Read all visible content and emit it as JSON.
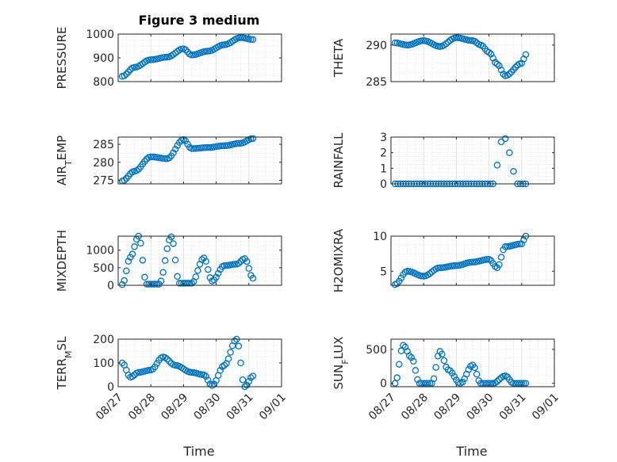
{
  "chart_data": [
    {
      "type": "scatter",
      "title": "Figure 3 medium",
      "ylabel": "PRESSURE",
      "ylim": [
        800,
        1000
      ],
      "yticks": [
        "800",
        "900",
        "1000"
      ],
      "grid": true,
      "x": [
        "08/27 03:00",
        "08/27 12:00",
        "08/28 00:00",
        "08/28 12:00",
        "08/29 00:00",
        "08/29 06:00",
        "08/29 18:00",
        "08/30 06:00",
        "08/30 18:00",
        "08/31 03:00"
      ],
      "values": [
        822,
        860,
        892,
        903,
        938,
        912,
        928,
        955,
        985,
        977
      ]
    },
    {
      "type": "scatter",
      "ylabel": "THETA",
      "ylim": [
        285,
        291.5
      ],
      "yticks": [
        "285",
        "290"
      ],
      "grid": true,
      "x": [
        "08/27 03:00",
        "08/27 12:00",
        "08/28 00:00",
        "08/28 12:00",
        "08/29 00:00",
        "08/29 12:00",
        "08/29 18:00",
        "08/30 00:00",
        "08/30 06:00",
        "08/30 12:00",
        "08/31 00:00",
        "08/31 03:00"
      ],
      "values": [
        290.3,
        290.0,
        290.6,
        289.8,
        291.0,
        290.6,
        290.0,
        289.0,
        287.4,
        285.8,
        287.5,
        288.7
      ]
    },
    {
      "type": "scatter",
      "ylabel": "AIR_TEMP",
      "ylim": [
        274,
        287
      ],
      "yticks": [
        "275",
        "280",
        "285"
      ],
      "grid": true,
      "x": [
        "08/27 03:00",
        "08/27 12:00",
        "08/28 00:00",
        "08/28 12:00",
        "08/29 00:00",
        "08/29 06:00",
        "08/29 18:00",
        "08/30 06:00",
        "08/30 18:00",
        "08/31 03:00"
      ],
      "values": [
        274.8,
        277.5,
        281.5,
        281.0,
        286.3,
        283.8,
        284.1,
        284.6,
        285.3,
        286.6
      ]
    },
    {
      "type": "scatter",
      "ylabel": "RAINFALL",
      "ylim": [
        0,
        3
      ],
      "yticks": [
        "0",
        "1",
        "2",
        "3"
      ],
      "grid": true,
      "x": [
        "08/27 03:00",
        "08/28 00:00",
        "08/29 00:00",
        "08/30 00:00",
        "08/30 06:00",
        "08/30 09:00",
        "08/30 12:00",
        "08/30 15:00",
        "08/30 18:00",
        "08/31 03:00"
      ],
      "values": [
        0,
        0,
        0,
        0,
        1.2,
        2.7,
        2.9,
        2.0,
        0.8,
        0
      ]
    },
    {
      "type": "scatter",
      "ylabel": "MIXDEPTH",
      "ylim": [
        0,
        1400
      ],
      "yticks": [
        "0",
        "500",
        "1000"
      ],
      "grid": true,
      "x": [
        "08/27 03:00",
        "08/27 09:00",
        "08/27 15:00",
        "08/27 21:00",
        "08/28 06:00",
        "08/28 15:00",
        "08/28 21:00",
        "08/29 06:00",
        "08/29 15:00",
        "08/29 21:00",
        "08/30 06:00",
        "08/30 15:00",
        "08/30 21:00",
        "08/31 03:00"
      ],
      "values": [
        20,
        800,
        1400,
        30,
        30,
        1380,
        60,
        60,
        780,
        120,
        560,
        600,
        760,
        200
      ]
    },
    {
      "type": "scatter",
      "ylabel": "H2OMIXRA",
      "ylim": [
        3,
        10
      ],
      "yticks": [
        "5",
        "10"
      ],
      "grid": true,
      "x": [
        "08/27 03:00",
        "08/27 12:00",
        "08/28 00:00",
        "08/28 12:00",
        "08/29 00:00",
        "08/29 12:00",
        "08/30 00:00",
        "08/30 06:00",
        "08/30 12:00",
        "08/31 00:00",
        "08/31 03:00"
      ],
      "values": [
        3.1,
        5.0,
        4.3,
        5.5,
        5.8,
        6.3,
        6.7,
        5.5,
        8.5,
        8.9,
        10.0
      ]
    },
    {
      "type": "scatter",
      "ylabel": "TERR_MSL",
      "ylim": [
        0,
        200
      ],
      "yticks": [
        "0",
        "100",
        "200"
      ],
      "grid": true,
      "x": [
        "08/27 03:00",
        "08/27 09:00",
        "08/27 15:00",
        "08/28 00:00",
        "08/28 09:00",
        "08/28 18:00",
        "08/29 06:00",
        "08/29 15:00",
        "08/29 21:00",
        "08/30 06:00",
        "08/30 15:00",
        "08/30 21:00",
        "08/31 03:00"
      ],
      "values": [
        100,
        40,
        60,
        70,
        125,
        90,
        60,
        50,
        5,
        90,
        200,
        0,
        45
      ]
    },
    {
      "type": "scatter",
      "ylabel": "SUN_FLUX",
      "ylim": [
        -50,
        650
      ],
      "yticks": [
        "0",
        "500"
      ],
      "grid": true,
      "x": [
        "08/27 03:00",
        "08/27 09:00",
        "08/27 15:00",
        "08/27 21:00",
        "08/28 06:00",
        "08/28 12:00",
        "08/28 18:00",
        "08/29 03:00",
        "08/29 12:00",
        "08/29 18:00",
        "08/30 03:00",
        "08/30 12:00",
        "08/30 18:00",
        "08/31 03:00"
      ],
      "values": [
        0,
        560,
        380,
        0,
        0,
        470,
        200,
        0,
        270,
        0,
        0,
        110,
        0,
        0
      ]
    }
  ],
  "xaxis": {
    "label": "Time",
    "ticks": [
      "08/27",
      "08/28",
      "08/29",
      "08/30",
      "08/31",
      "09/01"
    ],
    "range": [
      "08/27",
      "09/01"
    ]
  },
  "colors": {
    "marker": "#0072BD",
    "axis": "#262626",
    "grid": "#dedede"
  }
}
